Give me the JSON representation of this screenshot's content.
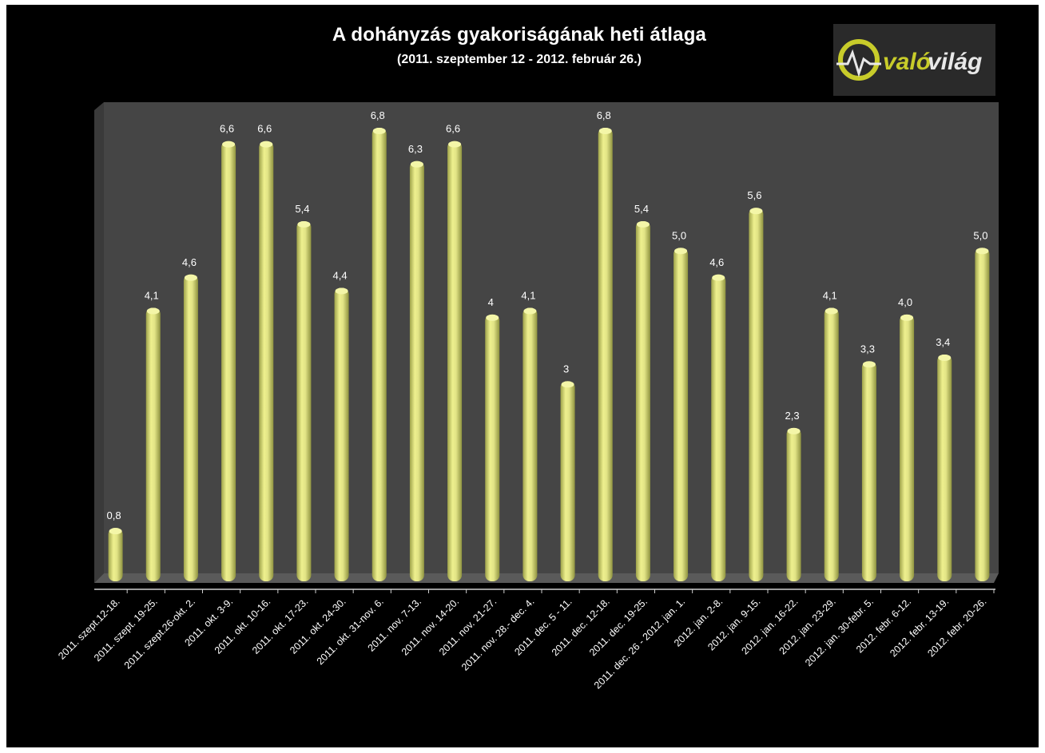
{
  "chart_data": {
    "type": "bar",
    "title": "A dohányzás gyakoriságának heti átlaga",
    "subtitle": "(2011. szeptember 12 - 2012. február 26.)",
    "categories": [
      "2011. szept.12-18.",
      "2011. szept. 19-25.",
      "2011. szept.26-okt. 2.",
      "2011. okt. 3-9.",
      "2011. okt. 10-16.",
      "2011. okt. 17-23.",
      "2011. okt. 24-30.",
      "2011. okt. 31-nov. 6.",
      "2011. nov. 7-13.",
      "2011. nov. 14-20.",
      "2011. nov. 21-27.",
      "2011. nov. 28.- dec. 4.",
      "2011. dec. 5 - 11.",
      "2011. dec. 12-18.",
      "2011. dec. 19-25.",
      "2011. dec. 26 - 2012. jan. 1.",
      "2012. jan. 2-8.",
      "2012. jan. 9-15.",
      "2012. jan. 16-22.",
      "2012. jan. 23-29.",
      "2012. jan. 30-febr. 5.",
      "2012. febr. 6-12.",
      "2012. febr. 13-19.",
      "2012. febr. 20-26."
    ],
    "values": [
      0.8,
      4.1,
      4.6,
      6.6,
      6.6,
      5.4,
      4.4,
      6.8,
      6.3,
      6.6,
      4,
      4.1,
      3,
      6.8,
      5.4,
      5.0,
      4.6,
      5.6,
      2.3,
      4.1,
      3.3,
      4.0,
      3.4,
      5.0
    ],
    "data_labels": [
      "0,8",
      "4,1",
      "4,6",
      "6,6",
      "6,6",
      "5,4",
      "4,4",
      "6,8",
      "6,3",
      "6,6",
      "4",
      "4,1",
      "3",
      "6,8",
      "5,4",
      "5,0",
      "4,6",
      "5,6",
      "2,3",
      "4,1",
      "3,3",
      "4,0",
      "3,4",
      "5,0"
    ],
    "ylim": [
      0,
      7
    ],
    "grid": false,
    "legend": "none",
    "colors": {
      "bar": "#d8dc7a",
      "plot_bg": "#454545",
      "page_bg": "#000000",
      "text": "#ffffff"
    }
  },
  "logo": {
    "text": "valóvilág",
    "accent": "#c8cc2a"
  }
}
